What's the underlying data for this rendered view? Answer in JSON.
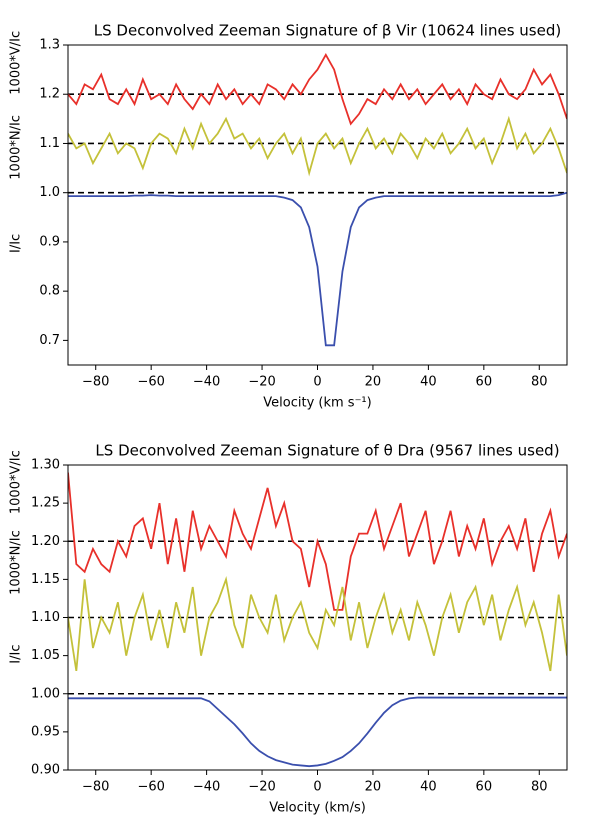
{
  "chart_data": [
    {
      "type": "line",
      "title": "LS Deconvolved Zeeman Signature of β Vir (10624 lines used)",
      "xlabel": "Velocity (km s⁻¹)",
      "ylabels": [
        "1000*V/Ic",
        "1000*N/Ic",
        "I/Ic"
      ],
      "xlim": [
        -90,
        90
      ],
      "ylim": [
        0.65,
        1.3
      ],
      "xticks": [
        {
          "value": -80,
          "label": "−80"
        },
        {
          "value": -60,
          "label": "−60"
        },
        {
          "value": -40,
          "label": "−40"
        },
        {
          "value": -20,
          "label": "−20"
        },
        0,
        20,
        40,
        60,
        80
      ],
      "yticks": [
        0.7,
        0.8,
        0.9,
        {
          "value": 1.0,
          "label": "1.0"
        },
        1.1,
        1.2,
        1.3
      ],
      "hlines": [
        1.2,
        1.1,
        1.0
      ],
      "x": [
        -90,
        -87,
        -84,
        -81,
        -78,
        -75,
        -72,
        -69,
        -66,
        -63,
        -60,
        -57,
        -54,
        -51,
        -48,
        -45,
        -42,
        -39,
        -36,
        -33,
        -30,
        -27,
        -24,
        -21,
        -18,
        -15,
        -12,
        -9,
        -6,
        -3,
        0,
        3,
        6,
        9,
        12,
        15,
        18,
        21,
        24,
        27,
        30,
        33,
        36,
        39,
        42,
        45,
        48,
        51,
        54,
        57,
        60,
        63,
        66,
        69,
        72,
        75,
        78,
        81,
        84,
        87,
        90
      ],
      "series": [
        {
          "color": "#e8302a",
          "values": [
            1.2,
            1.18,
            1.22,
            1.21,
            1.24,
            1.19,
            1.18,
            1.21,
            1.18,
            1.23,
            1.19,
            1.2,
            1.18,
            1.22,
            1.19,
            1.17,
            1.2,
            1.18,
            1.22,
            1.19,
            1.21,
            1.18,
            1.2,
            1.18,
            1.22,
            1.21,
            1.19,
            1.22,
            1.2,
            1.23,
            1.25,
            1.28,
            1.25,
            1.19,
            1.14,
            1.16,
            1.19,
            1.18,
            1.21,
            1.19,
            1.22,
            1.19,
            1.21,
            1.18,
            1.2,
            1.22,
            1.19,
            1.21,
            1.18,
            1.22,
            1.2,
            1.19,
            1.23,
            1.2,
            1.19,
            1.21,
            1.25,
            1.22,
            1.24,
            1.2,
            1.15
          ]
        },
        {
          "color": "#c4c13a",
          "values": [
            1.12,
            1.09,
            1.1,
            1.06,
            1.09,
            1.12,
            1.08,
            1.1,
            1.09,
            1.05,
            1.1,
            1.12,
            1.11,
            1.08,
            1.13,
            1.09,
            1.14,
            1.1,
            1.12,
            1.15,
            1.11,
            1.12,
            1.09,
            1.11,
            1.07,
            1.1,
            1.12,
            1.08,
            1.11,
            1.04,
            1.1,
            1.12,
            1.09,
            1.11,
            1.06,
            1.1,
            1.13,
            1.09,
            1.11,
            1.08,
            1.12,
            1.1,
            1.07,
            1.11,
            1.09,
            1.12,
            1.08,
            1.1,
            1.13,
            1.09,
            1.11,
            1.06,
            1.1,
            1.15,
            1.09,
            1.12,
            1.08,
            1.1,
            1.13,
            1.09,
            1.04
          ]
        },
        {
          "color": "#3a4fad",
          "values": [
            0.993,
            0.993,
            0.993,
            0.993,
            0.993,
            0.993,
            0.993,
            0.993,
            0.994,
            0.994,
            0.995,
            0.994,
            0.994,
            0.993,
            0.993,
            0.993,
            0.993,
            0.993,
            0.993,
            0.993,
            0.993,
            0.993,
            0.993,
            0.993,
            0.993,
            0.993,
            0.99,
            0.985,
            0.97,
            0.93,
            0.85,
            0.69,
            0.69,
            0.84,
            0.93,
            0.97,
            0.985,
            0.99,
            0.993,
            0.993,
            0.993,
            0.993,
            0.993,
            0.993,
            0.993,
            0.993,
            0.993,
            0.993,
            0.993,
            0.993,
            0.993,
            0.993,
            0.993,
            0.993,
            0.993,
            0.993,
            0.993,
            0.993,
            0.993,
            0.995,
            1.0
          ]
        }
      ]
    },
    {
      "type": "line",
      "title": "LS Deconvolved Zeeman Signature of θ Dra (9567 lines used)",
      "xlabel": "Velocity (km/s)",
      "ylabels": [
        "1000*V/Ic",
        "1000*N/Ic",
        "I/Ic"
      ],
      "xlim": [
        -90,
        90
      ],
      "ylim": [
        0.9,
        1.3
      ],
      "xticks": [
        {
          "value": -80,
          "label": "−80"
        },
        {
          "value": -60,
          "label": "−60"
        },
        {
          "value": -40,
          "label": "−40"
        },
        {
          "value": -20,
          "label": "−20"
        },
        0,
        20,
        40,
        60,
        80
      ],
      "yticks": [
        {
          "value": 0.9,
          "label": "0.90"
        },
        {
          "value": 0.95,
          "label": "0.95"
        },
        {
          "value": 1.0,
          "label": "1.00"
        },
        {
          "value": 1.05,
          "label": "1.05"
        },
        {
          "value": 1.1,
          "label": "1.10"
        },
        {
          "value": 1.15,
          "label": "1.15"
        },
        {
          "value": 1.2,
          "label": "1.20"
        },
        {
          "value": 1.25,
          "label": "1.25"
        },
        {
          "value": 1.3,
          "label": "1.30"
        }
      ],
      "hlines": [
        1.2,
        1.1,
        1.0
      ],
      "x": [
        -90,
        -87,
        -84,
        -81,
        -78,
        -75,
        -72,
        -69,
        -66,
        -63,
        -60,
        -57,
        -54,
        -51,
        -48,
        -45,
        -42,
        -39,
        -36,
        -33,
        -30,
        -27,
        -24,
        -21,
        -18,
        -15,
        -12,
        -9,
        -6,
        -3,
        0,
        3,
        6,
        9,
        12,
        15,
        18,
        21,
        24,
        27,
        30,
        33,
        36,
        39,
        42,
        45,
        48,
        51,
        54,
        57,
        60,
        63,
        66,
        69,
        72,
        75,
        78,
        81,
        84,
        87,
        90
      ],
      "series": [
        {
          "color": "#e8302a",
          "values": [
            1.29,
            1.17,
            1.16,
            1.19,
            1.17,
            1.16,
            1.2,
            1.18,
            1.22,
            1.23,
            1.19,
            1.25,
            1.17,
            1.23,
            1.16,
            1.24,
            1.19,
            1.22,
            1.2,
            1.18,
            1.24,
            1.21,
            1.19,
            1.23,
            1.27,
            1.22,
            1.25,
            1.2,
            1.19,
            1.14,
            1.2,
            1.17,
            1.11,
            1.11,
            1.18,
            1.21,
            1.21,
            1.24,
            1.19,
            1.22,
            1.25,
            1.18,
            1.21,
            1.24,
            1.17,
            1.2,
            1.24,
            1.18,
            1.22,
            1.19,
            1.23,
            1.17,
            1.2,
            1.22,
            1.19,
            1.23,
            1.16,
            1.21,
            1.24,
            1.18,
            1.21
          ]
        },
        {
          "color": "#c4c13a",
          "values": [
            1.1,
            1.03,
            1.15,
            1.06,
            1.1,
            1.08,
            1.12,
            1.05,
            1.1,
            1.13,
            1.07,
            1.11,
            1.06,
            1.12,
            1.08,
            1.14,
            1.05,
            1.1,
            1.12,
            1.15,
            1.09,
            1.06,
            1.13,
            1.1,
            1.08,
            1.13,
            1.07,
            1.1,
            1.12,
            1.08,
            1.06,
            1.11,
            1.09,
            1.14,
            1.07,
            1.12,
            1.06,
            1.1,
            1.13,
            1.08,
            1.11,
            1.07,
            1.12,
            1.09,
            1.05,
            1.1,
            1.13,
            1.08,
            1.12,
            1.14,
            1.09,
            1.13,
            1.07,
            1.11,
            1.14,
            1.09,
            1.12,
            1.08,
            1.03,
            1.13,
            1.05
          ]
        },
        {
          "color": "#3a4fad",
          "values": [
            0.994,
            0.994,
            0.994,
            0.994,
            0.994,
            0.994,
            0.994,
            0.994,
            0.994,
            0.994,
            0.994,
            0.994,
            0.994,
            0.994,
            0.994,
            0.994,
            0.994,
            0.99,
            0.98,
            0.97,
            0.96,
            0.948,
            0.935,
            0.925,
            0.918,
            0.913,
            0.91,
            0.907,
            0.906,
            0.905,
            0.906,
            0.908,
            0.912,
            0.917,
            0.925,
            0.935,
            0.948,
            0.962,
            0.975,
            0.985,
            0.991,
            0.994,
            0.995,
            0.995,
            0.995,
            0.995,
            0.995,
            0.995,
            0.995,
            0.995,
            0.995,
            0.995,
            0.995,
            0.995,
            0.995,
            0.995,
            0.995,
            0.995,
            0.995,
            0.995,
            0.995
          ]
        }
      ]
    }
  ]
}
